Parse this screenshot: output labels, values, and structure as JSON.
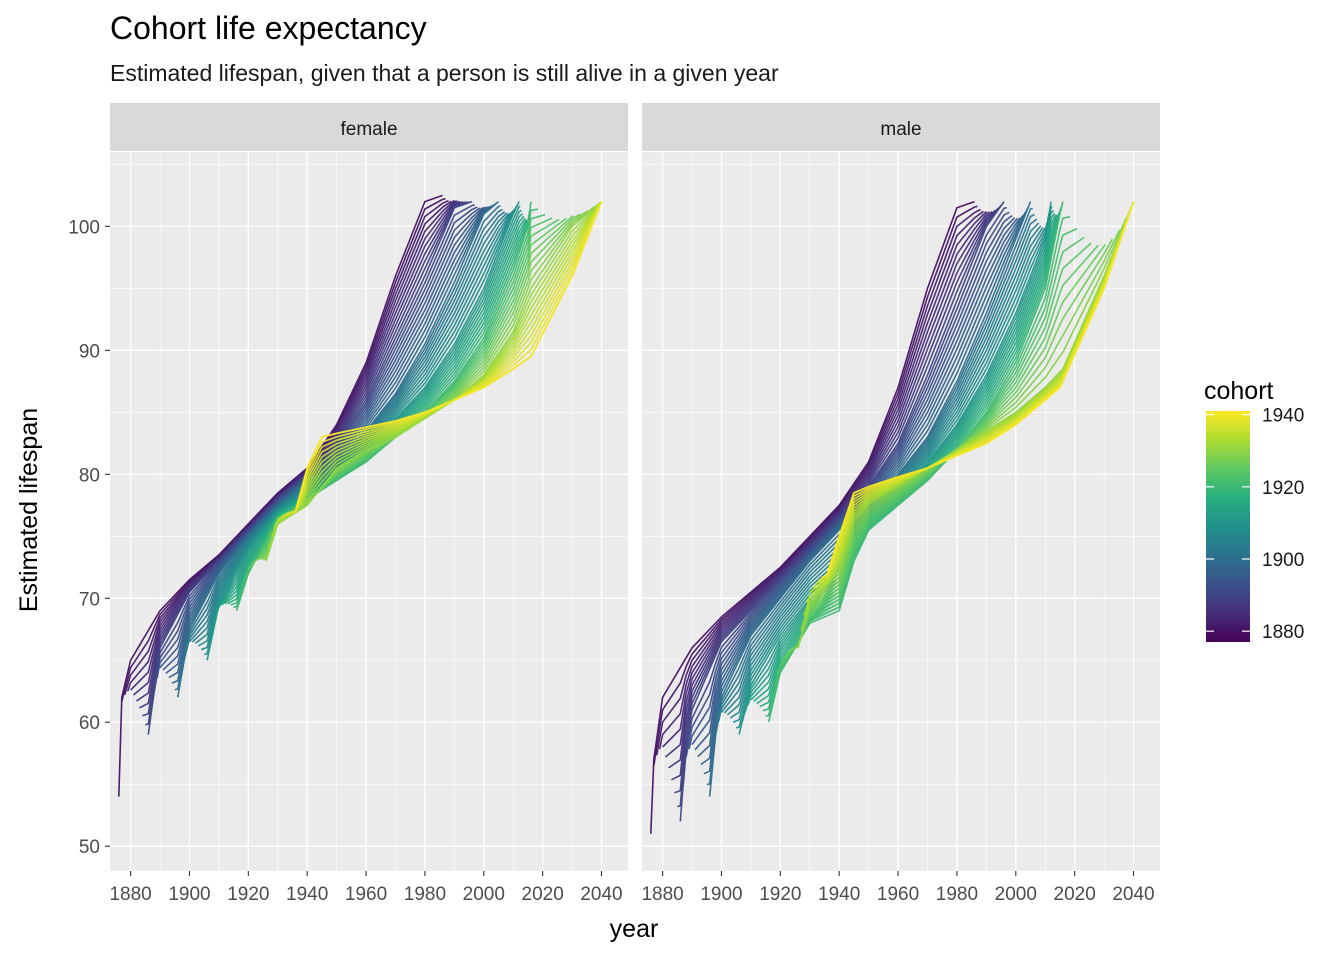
{
  "chart_data": {
    "type": "line",
    "title": "Cohort life expectancy",
    "subtitle": "Estimated lifespan, given that a person is still alive in a given year",
    "xlabel": "year",
    "ylabel": "Estimated lifespan",
    "xlim": [
      1873,
      2049
    ],
    "ylim": [
      48,
      106
    ],
    "x_ticks": [
      1880,
      1900,
      1920,
      1940,
      1960,
      1980,
      2000,
      2020,
      2040
    ],
    "y_ticks": [
      50,
      60,
      70,
      80,
      90,
      100
    ],
    "panels": [
      {
        "name": "female",
        "series": [
          {
            "cohort": 1880,
            "points": [
              [
                1876,
                54
              ],
              [
                1877,
                62
              ],
              [
                1880,
                65
              ],
              [
                1890,
                69
              ],
              [
                1900,
                71.5
              ],
              [
                1910,
                73.5
              ],
              [
                1920,
                76
              ],
              [
                1930,
                78.5
              ],
              [
                1940,
                80.5
              ],
              [
                1950,
                84
              ],
              [
                1960,
                89
              ],
              [
                1970,
                96
              ],
              [
                1980,
                102
              ],
              [
                1986,
                102.5
              ]
            ]
          },
          {
            "cohort": 1890,
            "points": [
              [
                1886,
                59
              ],
              [
                1890,
                66
              ],
              [
                1900,
                70.5
              ],
              [
                1910,
                73
              ],
              [
                1920,
                75.5
              ],
              [
                1930,
                78
              ],
              [
                1940,
                80
              ],
              [
                1950,
                82.5
              ],
              [
                1960,
                86
              ],
              [
                1970,
                91
              ],
              [
                1980,
                96
              ],
              [
                1990,
                101.5
              ],
              [
                1996,
                102
              ]
            ]
          },
          {
            "cohort": 1900,
            "points": [
              [
                1896,
                62
              ],
              [
                1900,
                67.5
              ],
              [
                1910,
                72
              ],
              [
                1920,
                75
              ],
              [
                1930,
                77.5
              ],
              [
                1940,
                79.5
              ],
              [
                1950,
                81
              ],
              [
                1960,
                83.5
              ],
              [
                1970,
                86.5
              ],
              [
                1980,
                90.5
              ],
              [
                1990,
                95.5
              ],
              [
                2000,
                101
              ],
              [
                2005,
                102
              ]
            ]
          },
          {
            "cohort": 1910,
            "points": [
              [
                1906,
                65
              ],
              [
                1910,
                69.5
              ],
              [
                1920,
                74
              ],
              [
                1930,
                77
              ],
              [
                1940,
                78.5
              ],
              [
                1950,
                80
              ],
              [
                1960,
                82
              ],
              [
                1970,
                84.5
              ],
              [
                1980,
                87
              ],
              [
                1990,
                90.5
              ],
              [
                2000,
                95
              ],
              [
                2010,
                101
              ],
              [
                2012,
                102
              ]
            ]
          },
          {
            "cohort": 1920,
            "points": [
              [
                1916,
                69
              ],
              [
                1920,
                72
              ],
              [
                1930,
                76.5
              ],
              [
                1940,
                78
              ],
              [
                1950,
                79.5
              ],
              [
                1960,
                81
              ],
              [
                1970,
                83
              ],
              [
                1980,
                85
              ],
              [
                1990,
                87.5
              ],
              [
                2000,
                91
              ],
              [
                2010,
                96.5
              ],
              [
                2015,
                100
              ],
              [
                2016,
                102
              ]
            ]
          },
          {
            "cohort": 1930,
            "points": [
              [
                1926,
                73
              ],
              [
                1930,
                76
              ],
              [
                1940,
                77.5
              ],
              [
                1950,
                80.5
              ],
              [
                1960,
                82
              ],
              [
                1970,
                83
              ],
              [
                1980,
                84.5
              ],
              [
                1990,
                86
              ],
              [
                2000,
                88
              ],
              [
                2010,
                91.5
              ],
              [
                2016,
                95
              ],
              [
                2030,
                100
              ],
              [
                2040,
                102
              ]
            ]
          },
          {
            "cohort": 1940,
            "points": [
              [
                1936,
                77
              ],
              [
                1940,
                80.5
              ],
              [
                1945,
                83
              ],
              [
                1950,
                83.3
              ],
              [
                1960,
                83.8
              ],
              [
                1970,
                84.3
              ],
              [
                1980,
                85
              ],
              [
                1990,
                86
              ],
              [
                2000,
                87
              ],
              [
                2010,
                88.5
              ],
              [
                2016,
                89.5
              ],
              [
                2030,
                96
              ],
              [
                2040,
                102
              ]
            ]
          }
        ]
      },
      {
        "name": "male",
        "series": [
          {
            "cohort": 1880,
            "points": [
              [
                1876,
                51
              ],
              [
                1877,
                57
              ],
              [
                1880,
                62
              ],
              [
                1890,
                66
              ],
              [
                1900,
                68.5
              ],
              [
                1910,
                70.5
              ],
              [
                1920,
                72.5
              ],
              [
                1930,
                75
              ],
              [
                1940,
                77.5
              ],
              [
                1950,
                81
              ],
              [
                1960,
                87
              ],
              [
                1970,
                95
              ],
              [
                1980,
                101.5
              ],
              [
                1986,
                102
              ]
            ]
          },
          {
            "cohort": 1890,
            "points": [
              [
                1886,
                52
              ],
              [
                1888,
                58
              ],
              [
                1890,
                61
              ],
              [
                1900,
                66.5
              ],
              [
                1910,
                69
              ],
              [
                1920,
                71.5
              ],
              [
                1930,
                74
              ],
              [
                1940,
                76.5
              ],
              [
                1950,
                79
              ],
              [
                1960,
                82.5
              ],
              [
                1970,
                88
              ],
              [
                1980,
                94
              ],
              [
                1990,
                100
              ],
              [
                1996,
                102
              ]
            ]
          },
          {
            "cohort": 1900,
            "points": [
              [
                1896,
                54
              ],
              [
                1898,
                59
              ],
              [
                1900,
                62
              ],
              [
                1910,
                67
              ],
              [
                1920,
                70
              ],
              [
                1930,
                73
              ],
              [
                1940,
                75.5
              ],
              [
                1950,
                77.5
              ],
              [
                1960,
                80
              ],
              [
                1970,
                83
              ],
              [
                1980,
                87.5
              ],
              [
                1990,
                93
              ],
              [
                2000,
                99
              ],
              [
                2005,
                102
              ]
            ]
          },
          {
            "cohort": 1910,
            "points": [
              [
                1906,
                59
              ],
              [
                1910,
                63
              ],
              [
                1920,
                67
              ],
              [
                1930,
                70
              ],
              [
                1940,
                72
              ],
              [
                1945,
                75
              ],
              [
                1950,
                76.5
              ],
              [
                1960,
                78.5
              ],
              [
                1970,
                81
              ],
              [
                1980,
                84
              ],
              [
                1990,
                88
              ],
              [
                2000,
                93
              ],
              [
                2010,
                99
              ],
              [
                2012,
                102
              ]
            ]
          },
          {
            "cohort": 1920,
            "points": [
              [
                1916,
                60
              ],
              [
                1920,
                64
              ],
              [
                1930,
                68
              ],
              [
                1940,
                69
              ],
              [
                1945,
                73
              ],
              [
                1950,
                75.5
              ],
              [
                1960,
                77.5
              ],
              [
                1970,
                79.5
              ],
              [
                1980,
                82
              ],
              [
                1990,
                85
              ],
              [
                2000,
                89
              ],
              [
                2010,
                95
              ],
              [
                2015,
                101
              ],
              [
                2016,
                102
              ]
            ]
          },
          {
            "cohort": 1930,
            "points": [
              [
                1926,
                66
              ],
              [
                1930,
                69.5
              ],
              [
                1940,
                72
              ],
              [
                1945,
                76
              ],
              [
                1950,
                77.5
              ],
              [
                1960,
                79
              ],
              [
                1970,
                80.5
              ],
              [
                1980,
                82
              ],
              [
                1990,
                83.5
              ],
              [
                2000,
                85
              ],
              [
                2010,
                87
              ],
              [
                2016,
                88.5
              ],
              [
                2030,
                96
              ],
              [
                2040,
                102
              ]
            ]
          },
          {
            "cohort": 1940,
            "points": [
              [
                1936,
                72
              ],
              [
                1940,
                75
              ],
              [
                1945,
                78.5
              ],
              [
                1950,
                79
              ],
              [
                1960,
                79.8
              ],
              [
                1970,
                80.5
              ],
              [
                1980,
                81.5
              ],
              [
                1990,
                82.5
              ],
              [
                2000,
                84
              ],
              [
                2010,
                86
              ],
              [
                2015,
                87
              ],
              [
                2030,
                95
              ],
              [
                2040,
                102
              ]
            ]
          }
        ]
      }
    ],
    "legend": {
      "title": "cohort",
      "position": "right",
      "range": [
        1877,
        1941
      ],
      "labels": [
        1940,
        1920,
        1900,
        1880
      ],
      "colors": [
        "#440154",
        "#472d7b",
        "#3b528b",
        "#2c728e",
        "#21918c",
        "#28ae80",
        "#5ec962",
        "#addc30",
        "#fde725"
      ]
    },
    "grid": true,
    "panel_background": "#ebebeb",
    "strip_background": "#d9d9d9"
  }
}
